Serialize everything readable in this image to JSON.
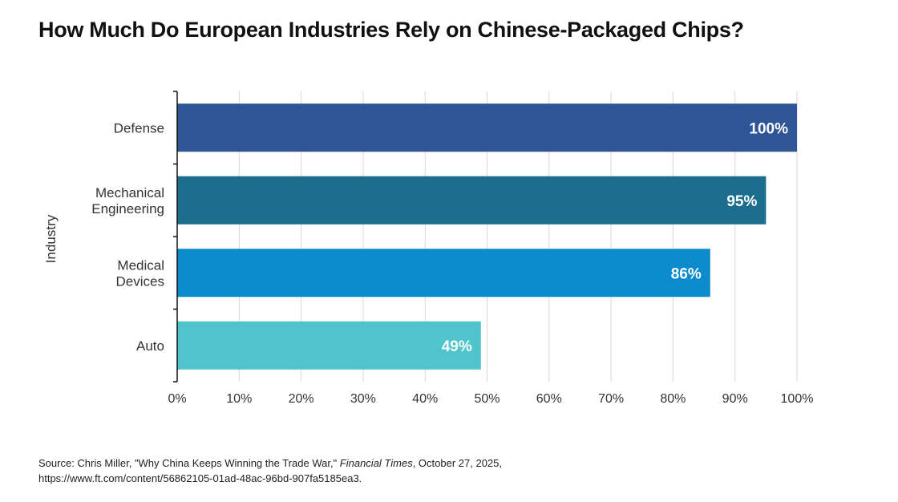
{
  "chart_data": {
    "type": "bar",
    "orientation": "horizontal",
    "title": "How Much Do European Industries Rely on Chinese-Packaged Chips?",
    "ylabel": "Industry",
    "xlabel": "",
    "categories": [
      [
        "Defense"
      ],
      [
        "Mechanical",
        "Engineering"
      ],
      [
        "Medical",
        "Devices"
      ],
      [
        "Auto"
      ]
    ],
    "values": [
      100,
      95,
      86,
      49
    ],
    "data_labels": [
      "100%",
      "95%",
      "86%",
      "49%"
    ],
    "colors": [
      "#2f5597",
      "#1b6e8d",
      "#0b8bcc",
      "#4fc4cc"
    ],
    "xlim": [
      0,
      100
    ],
    "xticks": [
      0,
      10,
      20,
      30,
      40,
      50,
      60,
      70,
      80,
      90,
      100
    ],
    "xtick_labels": [
      "0%",
      "10%",
      "20%",
      "30%",
      "40%",
      "50%",
      "60%",
      "70%",
      "80%",
      "90%",
      "100%"
    ],
    "grid": "vertical",
    "legend": "none"
  },
  "source": {
    "prefix": "Source: Chris Miller, \"Why China Keeps Winning the Trade War,\" ",
    "publication": "Financial Times",
    "date": ", October 27, 2025,",
    "url": "https://www.ft.com/content/56862105-01ad-48ac-96bd-907fa5185ea3."
  }
}
